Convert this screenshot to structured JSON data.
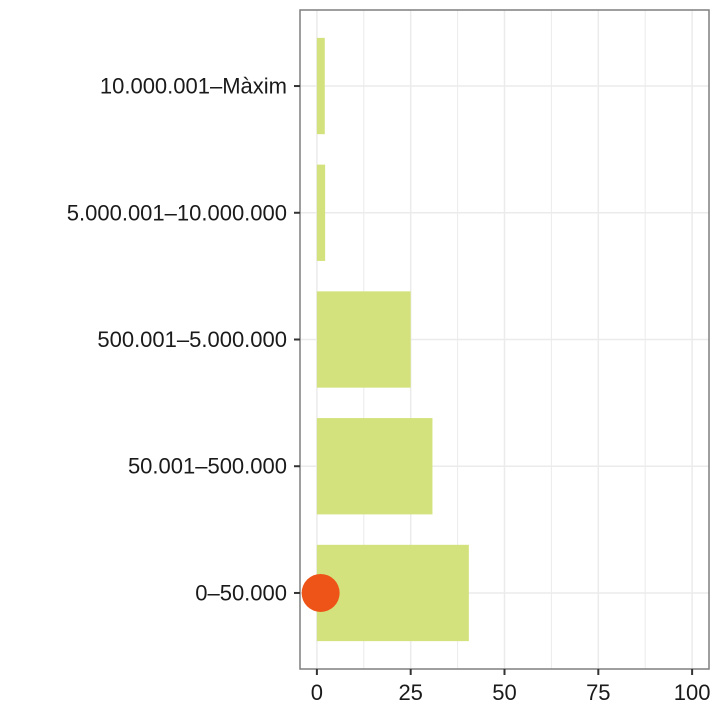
{
  "chart_data": {
    "type": "bar",
    "orientation": "horizontal",
    "title": "",
    "xlabel": "",
    "ylabel": "",
    "categories": [
      "0–50.000",
      "50.001–500.000",
      "500.001–5.000.000",
      "5.000.001–10.000.000",
      "10.000.001–Màxim"
    ],
    "values": [
      40.5,
      30.8,
      25.0,
      2.2,
      2.1
    ],
    "xlim": [
      -4.5,
      104.5
    ],
    "x_ticks": [
      0,
      25,
      50,
      75,
      100
    ],
    "x_tick_labels": [
      "0",
      "25",
      "50",
      "75",
      "100"
    ],
    "grid": true,
    "legend": "none",
    "marker": {
      "category": "0–50.000",
      "value": 1,
      "color": "#ee5417"
    },
    "colors": {
      "bar": "#d4e27d",
      "grid": "#ebebeb",
      "border": "#7f7f7f"
    }
  }
}
